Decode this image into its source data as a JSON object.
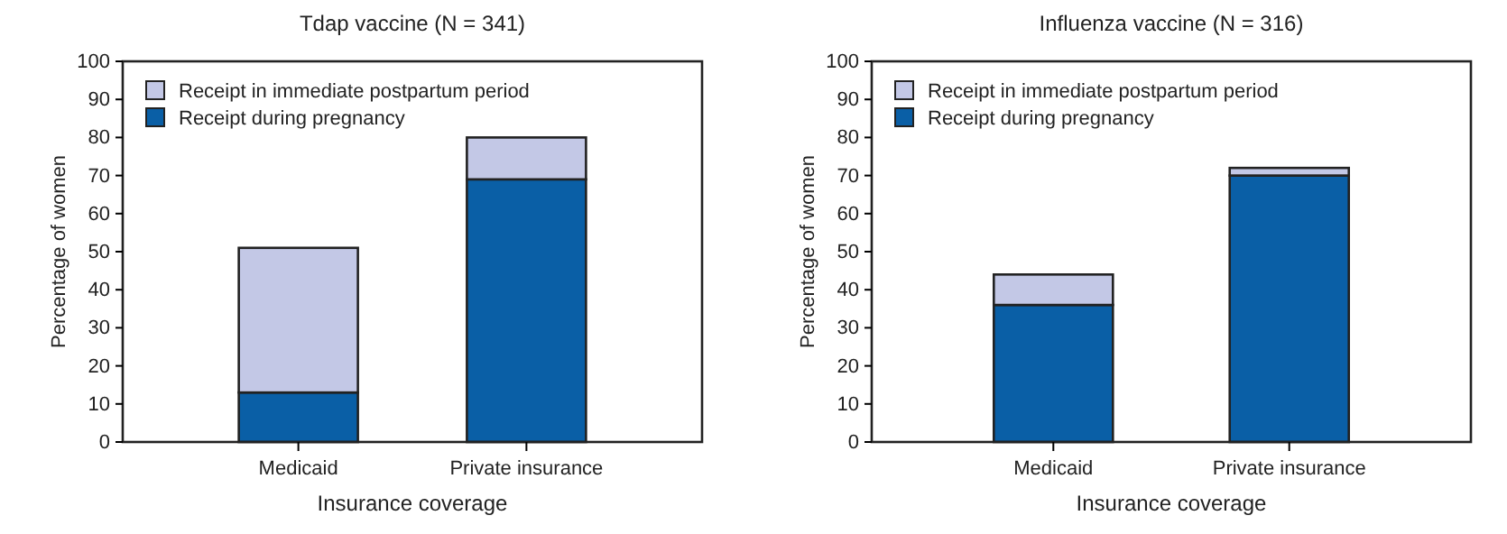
{
  "chart_data": [
    {
      "type": "bar",
      "title": "Tdap vaccine (N = 341)",
      "xlabel": "Insurance coverage",
      "ylabel": "Percentage of women",
      "categories": [
        "Medicaid",
        "Private insurance"
      ],
      "stacked": true,
      "ylim": [
        0,
        100
      ],
      "yticks": [
        0,
        10,
        20,
        30,
        40,
        50,
        60,
        70,
        80,
        90,
        100
      ],
      "legend": "top left",
      "series": [
        {
          "name": "Receipt during pregnancy",
          "color": "#0a5fa6",
          "values": [
            13,
            69
          ]
        },
        {
          "name": "Receipt in immediate postpartum period",
          "color": "#c3c8e6",
          "values": [
            38,
            11
          ]
        }
      ]
    },
    {
      "type": "bar",
      "title": "Influenza vaccine (N = 316)",
      "xlabel": "Insurance coverage",
      "ylabel": "Percentage of women",
      "categories": [
        "Medicaid",
        "Private insurance"
      ],
      "stacked": true,
      "ylim": [
        0,
        100
      ],
      "yticks": [
        0,
        10,
        20,
        30,
        40,
        50,
        60,
        70,
        80,
        90,
        100
      ],
      "legend": "top left",
      "series": [
        {
          "name": "Receipt during pregnancy",
          "color": "#0a5fa6",
          "values": [
            36,
            70
          ]
        },
        {
          "name": "Receipt in immediate postpartum period",
          "color": "#c3c8e6",
          "values": [
            8,
            2
          ]
        }
      ]
    }
  ]
}
